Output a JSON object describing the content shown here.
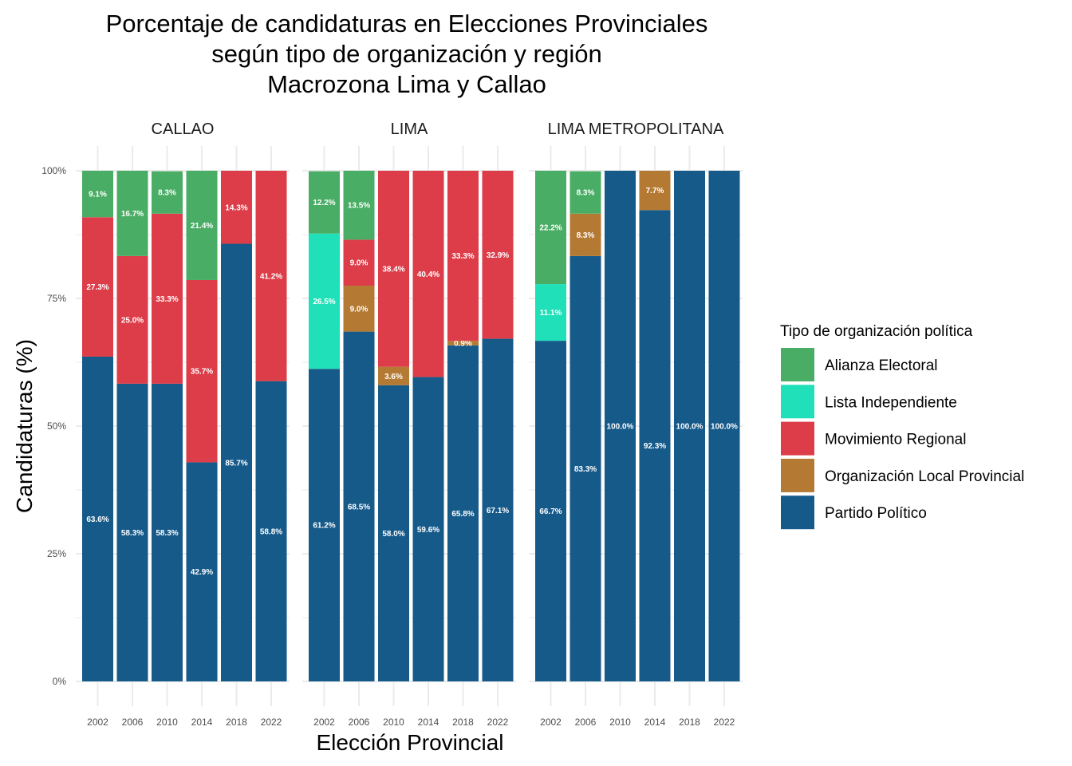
{
  "chart_data": {
    "type": "bar",
    "stacked": true,
    "title": [
      "Porcentaje de candidaturas en Elecciones Provinciales",
      "según tipo de organización y región",
      "Macrozona Lima y Callao"
    ],
    "xlabel": "Elección Provincial",
    "ylabel": "Candidaturas (%)",
    "ylim": [
      0,
      100
    ],
    "y_ticks": [
      "0%",
      "25%",
      "50%",
      "75%",
      "100%"
    ],
    "categories": [
      "2002",
      "2006",
      "2010",
      "2014",
      "2018",
      "2022"
    ],
    "legend": {
      "title": "Tipo de organización política",
      "position": "right",
      "entries": [
        {
          "name": "Alianza Electoral",
          "color": "#4aad65"
        },
        {
          "name": "Lista Independiente",
          "color": "#1fe0b8"
        },
        {
          "name": "Movimiento Regional",
          "color": "#dd3d49"
        },
        {
          "name": "Organización Local Provincial",
          "color": "#b47a33"
        },
        {
          "name": "Partido Político",
          "color": "#165a8a"
        }
      ]
    },
    "panels": [
      {
        "name": "CALLAO",
        "series": [
          {
            "name": "Partido Político",
            "values": [
              63.6,
              58.3,
              58.3,
              42.9,
              85.7,
              58.8
            ]
          },
          {
            "name": "Organización Local Provincial",
            "values": [
              0,
              0,
              0,
              0,
              0,
              0
            ]
          },
          {
            "name": "Movimiento Regional",
            "values": [
              27.3,
              25.0,
              33.3,
              35.7,
              14.3,
              41.2
            ]
          },
          {
            "name": "Lista Independiente",
            "values": [
              0,
              0,
              0,
              0,
              0,
              0
            ]
          },
          {
            "name": "Alianza Electoral",
            "values": [
              9.1,
              16.7,
              8.3,
              21.4,
              0,
              0
            ]
          }
        ]
      },
      {
        "name": "LIMA",
        "series": [
          {
            "name": "Partido Político",
            "values": [
              61.2,
              68.5,
              58.0,
              59.6,
              65.8,
              67.1
            ]
          },
          {
            "name": "Organización Local Provincial",
            "values": [
              0,
              9.0,
              3.6,
              0,
              0.9,
              0
            ]
          },
          {
            "name": "Movimiento Regional",
            "values": [
              0,
              9.0,
              38.4,
              40.4,
              33.3,
              32.9
            ]
          },
          {
            "name": "Lista Independiente",
            "values": [
              26.5,
              0,
              0,
              0,
              0,
              0
            ]
          },
          {
            "name": "Alianza Electoral",
            "values": [
              12.2,
              13.5,
              0,
              0,
              0,
              0
            ]
          }
        ]
      },
      {
        "name": "LIMA METROPOLITANA",
        "series": [
          {
            "name": "Partido Político",
            "values": [
              66.7,
              83.3,
              100.0,
              92.3,
              100.0,
              100.0
            ]
          },
          {
            "name": "Organización Local Provincial",
            "values": [
              0,
              8.3,
              0,
              7.7,
              0,
              0
            ]
          },
          {
            "name": "Movimiento Regional",
            "values": [
              0,
              0,
              0,
              0,
              0,
              0
            ]
          },
          {
            "name": "Lista Independiente",
            "values": [
              11.1,
              0,
              0,
              0,
              0,
              0
            ]
          },
          {
            "name": "Alianza Electoral",
            "values": [
              22.2,
              8.3,
              0,
              0,
              0,
              0
            ]
          }
        ]
      }
    ]
  }
}
